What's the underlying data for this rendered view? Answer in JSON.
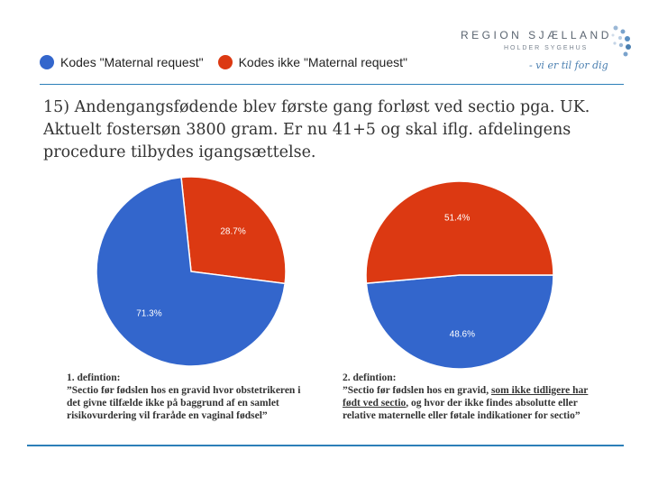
{
  "logo": {
    "name": "REGION SJÆLLAND",
    "tagline": "HOLDER SYGEHUS",
    "slogan": "- vi er til for dig"
  },
  "colors": {
    "blue": "#3366cc",
    "red": "#dc3912",
    "accent": "#2c7fb8"
  },
  "legend": [
    {
      "label": "Kodes \"Maternal request\"",
      "color": "#3366cc"
    },
    {
      "label": "Kodes ikke \"Maternal request\"",
      "color": "#dc3912"
    }
  ],
  "question": "15) Andengangsfødende blev første gang forløst ved sectio pga. UK. Aktuelt fostersøn 3800 gram. Er nu 41+5 og skal iflg. afdelingens procedure tilbydes igangsættelse.",
  "chart_data": [
    {
      "type": "pie",
      "title": "1. defintion",
      "slices": [
        {
          "label": "Kodes \"Maternal request\"",
          "value": 71.3,
          "text": "71.3%",
          "color": "#3366cc"
        },
        {
          "label": "Kodes ikke \"Maternal request\"",
          "value": 28.7,
          "text": "28.7%",
          "color": "#dc3912"
        }
      ]
    },
    {
      "type": "pie",
      "title": "2. defintion",
      "slices": [
        {
          "label": "Kodes \"Maternal request\"",
          "value": 48.6,
          "text": "48.6%",
          "color": "#3366cc"
        },
        {
          "label": "Kodes ikke \"Maternal request\"",
          "value": 51.4,
          "text": "51.4%",
          "color": "#dc3912"
        }
      ]
    }
  ],
  "definitions": {
    "def1": {
      "title": "1. defintion:",
      "text": "”Sectio før fødslen hos en gravid hvor obstetrikeren i det givne tilfælde ikke på baggrund af en samlet risikovurdering vil fraråde en vaginal fødsel”"
    },
    "def2": {
      "title": "2. defintion:",
      "text_a": "”Sectio før fødslen hos en gravid, ",
      "text_u": "som ikke tidligere har født ved sectio",
      "text_b": ", og hvor der ikke findes absolutte eller relative maternelle eller føtale indikationer for sectio”"
    }
  }
}
